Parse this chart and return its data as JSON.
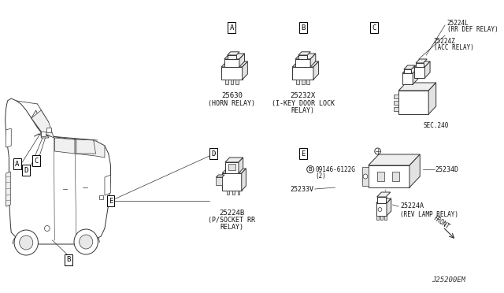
{
  "background_color": "#ffffff",
  "diagram_code": "J25200EM",
  "parts": {
    "A": {
      "code": "25630",
      "desc1": "(HORN RELAY)",
      "desc2": ""
    },
    "B": {
      "code": "25232X",
      "desc1": "(I-KEY DOOR LOCK",
      "desc2": "RELAY)"
    },
    "C_top": {
      "code": "25224L",
      "desc": "(RR DEF RELAY)"
    },
    "C_mid": {
      "code": "25224Z",
      "desc": "(ACC RELAY)"
    },
    "C_sec": "SEC.240",
    "D": {
      "code": "25224B",
      "desc1": "(P/SOCKET RR",
      "desc2": "RELAY)"
    },
    "E_bolt_code": "09146-6122G",
    "E_bolt_qty": "(2)",
    "E_main": "25233V",
    "E_relay": "25234D",
    "E_lamp_code": "25224A",
    "E_lamp_desc": "(REV LAMP RELAY)"
  },
  "lw": 0.7,
  "lc": "#333333",
  "fc": "#f9f9f9",
  "fc2": "#eeeeee",
  "fc3": "#e2e2e2"
}
